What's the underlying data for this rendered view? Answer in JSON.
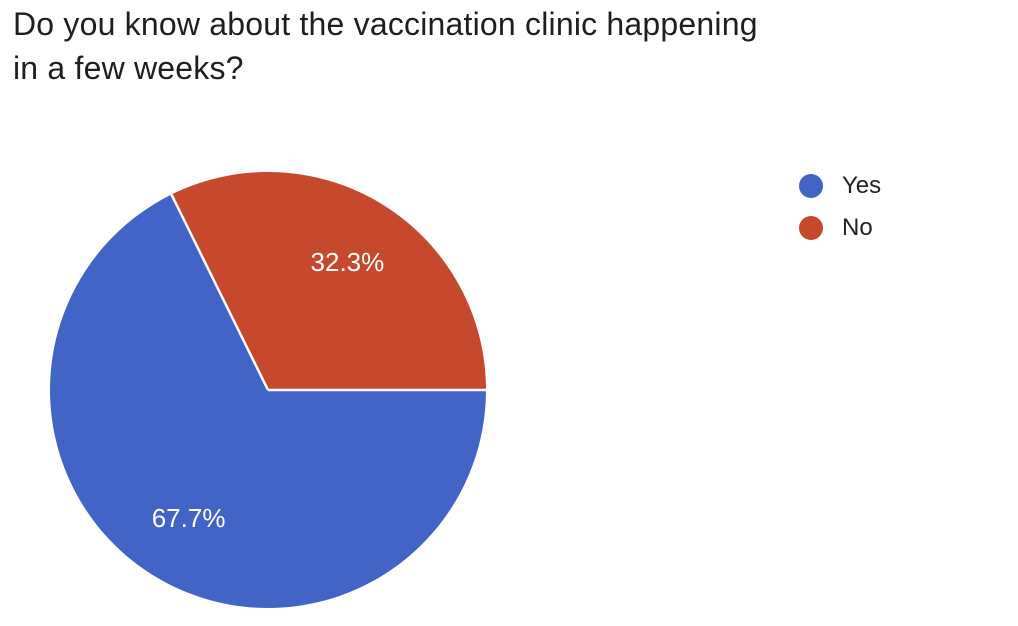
{
  "header": {
    "line1": "Do you know about the vaccination clinic happening",
    "line2": "in a few weeks?"
  },
  "chart_data": {
    "type": "pie",
    "title": "Do you know about the vaccination clinic happening in a few weeks?",
    "categories": [
      "Yes",
      "No"
    ],
    "values": [
      67.7,
      32.3
    ],
    "slice_labels": [
      "67.7%",
      "32.3%"
    ],
    "colors": [
      "#4164C6",
      "#C6492E"
    ],
    "slice_label_color": "#ffffff",
    "separator_color": "#ffffff",
    "start_angle_from_top_deg": 90,
    "direction": "clockwise",
    "legend_position": "right",
    "legend": {
      "items": [
        {
          "label": "Yes",
          "color": "#4164C6"
        },
        {
          "label": "No",
          "color": "#C6492E"
        }
      ]
    }
  }
}
